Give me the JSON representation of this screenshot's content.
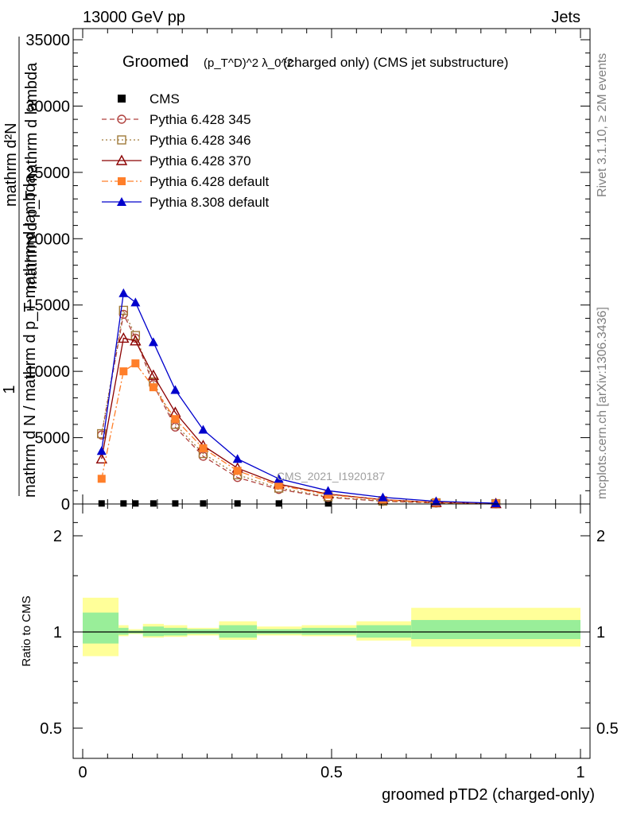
{
  "header": {
    "left": "13000 GeV pp",
    "right": "Jets"
  },
  "side_labels": {
    "rivet": "Rivet 3.1.10, ≥ 2M events",
    "mcplots": "mcplots.cern.ch [arXiv:1306.3436]"
  },
  "chart_data": [
    {
      "type": "line",
      "title_main": "Groomed",
      "title_math": "(p_T^D)^2 λ_0^2",
      "title_rest": "(charged only) (CMS jet substructure)",
      "watermark": "CMS_2021_I1920187",
      "ylabel_top": "mathrm d²N",
      "ylabel_mid": "mathrm d p_T mathrm d lambda",
      "ylabel_one": "1",
      "ylabel_bottom": "mathrm d N / mathrm d p_T mathrm d lambda",
      "xlim": [
        0,
        1
      ],
      "ylim": [
        0,
        35000
      ],
      "yticks": [
        0,
        5000,
        10000,
        15000,
        20000,
        25000,
        30000,
        35000
      ],
      "ytick_labels": [
        "0",
        "5000",
        "10000",
        "15000",
        "20000",
        "25000",
        "30000",
        "35000"
      ],
      "legend_position": "top-left",
      "series": [
        {
          "name": "CMS",
          "color": "#000000",
          "marker": "square-filled",
          "x": [
            0.038,
            0.082,
            0.106,
            0.142,
            0.186,
            0.242,
            0.311,
            0.394,
            0.493
          ],
          "y": [
            40,
            40,
            40,
            40,
            40,
            40,
            40,
            40,
            40
          ]
        },
        {
          "name": "Pythia 6.428 345",
          "color": "#b0413e",
          "marker": "circle-open",
          "line": "dashed",
          "x": [
            0.038,
            0.082,
            0.106,
            0.142,
            0.186,
            0.242,
            0.311,
            0.394,
            0.493,
            0.603,
            0.71,
            0.83
          ],
          "y": [
            5200,
            14300,
            12500,
            9000,
            5800,
            3600,
            2000,
            1100,
            500,
            200,
            80,
            20
          ]
        },
        {
          "name": "Pythia 6.428 346",
          "color": "#a07a3a",
          "marker": "square-open",
          "line": "dotted",
          "x": [
            0.038,
            0.082,
            0.106,
            0.142,
            0.186,
            0.242,
            0.311,
            0.394,
            0.493,
            0.603,
            0.71,
            0.83
          ],
          "y": [
            5300,
            14600,
            12700,
            9200,
            6000,
            3800,
            2200,
            1200,
            550,
            220,
            90,
            25
          ]
        },
        {
          "name": "Pythia 6.428 370",
          "color": "#8b0000",
          "marker": "triangle-open",
          "line": "solid",
          "x": [
            0.038,
            0.082,
            0.106,
            0.142,
            0.186,
            0.242,
            0.311,
            0.394,
            0.493,
            0.603,
            0.71,
            0.83
          ],
          "y": [
            3400,
            12500,
            12300,
            9700,
            6900,
            4400,
            2700,
            1500,
            750,
            320,
            120,
            30
          ]
        },
        {
          "name": "Pythia 6.428 default",
          "color": "#ff7f2a",
          "marker": "square-filled",
          "line": "dashdot",
          "x": [
            0.038,
            0.082,
            0.106,
            0.142,
            0.186,
            0.242,
            0.311,
            0.394,
            0.493,
            0.603,
            0.71,
            0.83
          ],
          "y": [
            1900,
            10000,
            10600,
            8800,
            6400,
            4200,
            2500,
            1400,
            700,
            300,
            110,
            30
          ]
        },
        {
          "name": "Pythia 8.308 default",
          "color": "#0000cc",
          "marker": "triangle-filled",
          "line": "solid",
          "x": [
            0.038,
            0.082,
            0.106,
            0.142,
            0.186,
            0.242,
            0.311,
            0.394,
            0.493,
            0.603,
            0.71,
            0.83
          ],
          "y": [
            4000,
            15900,
            15200,
            12200,
            8600,
            5600,
            3400,
            1900,
            1000,
            500,
            200,
            60
          ]
        }
      ]
    },
    {
      "type": "area",
      "ylabel": "Ratio to CMS",
      "xlabel": "groomed pTD2 (charged-only)",
      "xlim": [
        0,
        1
      ],
      "ylim": [
        0.4,
        2.4
      ],
      "xticks": [
        0,
        0.5,
        1
      ],
      "xtick_labels": [
        "0",
        "0.5",
        "1"
      ],
      "yticks": [
        0.5,
        1,
        2
      ],
      "ytick_labels": [
        "0.5",
        "1",
        "2"
      ],
      "bands": [
        {
          "x0": 0.0,
          "x1": 0.072,
          "inner": [
            0.92,
            1.15
          ],
          "outer": [
            0.84,
            1.28
          ]
        },
        {
          "x0": 0.072,
          "x1": 0.092,
          "inner": [
            0.98,
            1.03
          ],
          "outer": [
            0.97,
            1.05
          ]
        },
        {
          "x0": 0.092,
          "x1": 0.121,
          "inner": [
            0.99,
            1.01
          ],
          "outer": [
            0.985,
            1.02
          ]
        },
        {
          "x0": 0.121,
          "x1": 0.163,
          "inner": [
            0.97,
            1.04
          ],
          "outer": [
            0.96,
            1.06
          ]
        },
        {
          "x0": 0.163,
          "x1": 0.21,
          "inner": [
            0.975,
            1.03
          ],
          "outer": [
            0.965,
            1.05
          ]
        },
        {
          "x0": 0.21,
          "x1": 0.274,
          "inner": [
            0.985,
            1.02
          ],
          "outer": [
            0.975,
            1.03
          ]
        },
        {
          "x0": 0.274,
          "x1": 0.35,
          "inner": [
            0.96,
            1.05
          ],
          "outer": [
            0.945,
            1.08
          ]
        },
        {
          "x0": 0.35,
          "x1": 0.44,
          "inner": [
            0.985,
            1.02
          ],
          "outer": [
            0.975,
            1.04
          ]
        },
        {
          "x0": 0.44,
          "x1": 0.55,
          "inner": [
            0.98,
            1.03
          ],
          "outer": [
            0.97,
            1.05
          ]
        },
        {
          "x0": 0.55,
          "x1": 0.66,
          "inner": [
            0.96,
            1.05
          ],
          "outer": [
            0.94,
            1.08
          ]
        },
        {
          "x0": 0.66,
          "x1": 1.0,
          "inner": [
            0.95,
            1.09
          ],
          "outer": [
            0.9,
            1.19
          ]
        }
      ],
      "reference_line": 1
    }
  ]
}
